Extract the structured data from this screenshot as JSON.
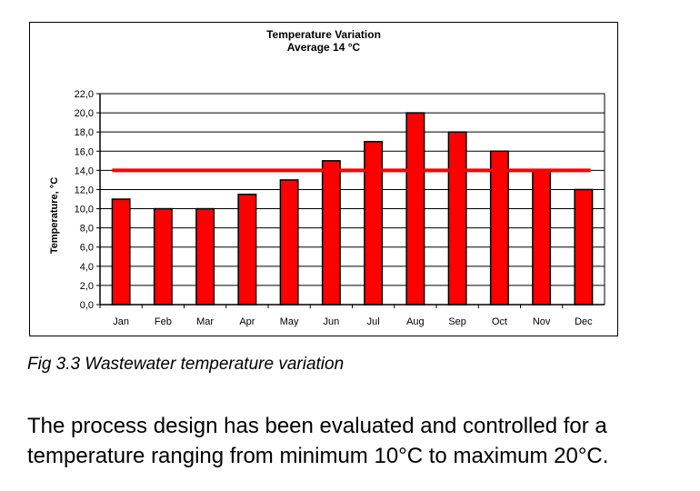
{
  "chart_data": {
    "type": "bar",
    "title": "Temperature Variation",
    "subtitle": "Average 14 °C",
    "xlabel": "",
    "ylabel": "Temperature, °C",
    "categories": [
      "Jan",
      "Feb",
      "Mar",
      "Apr",
      "May",
      "Jun",
      "Jul",
      "Aug",
      "Sep",
      "Oct",
      "Nov",
      "Dec"
    ],
    "values": [
      11,
      10,
      10,
      11.5,
      13,
      15,
      17,
      20,
      18,
      16,
      14,
      12
    ],
    "ylim": [
      0,
      22
    ],
    "yticks": [
      "0,0",
      "2,0",
      "4,0",
      "6,0",
      "8,0",
      "10,0",
      "12,0",
      "14,0",
      "16,0",
      "18,0",
      "20,0",
      "22,0"
    ],
    "average_line": 14,
    "grid": true,
    "bar_color": "#ff0000",
    "average_line_color": "#ff0000"
  },
  "caption": "Fig 3.3 Wastewater temperature variation",
  "body_text": {
    "line1": "The process design has been evaluated and controlled for a",
    "line2": "temperature ranging from minimum 10°C to maximum 20°C."
  }
}
